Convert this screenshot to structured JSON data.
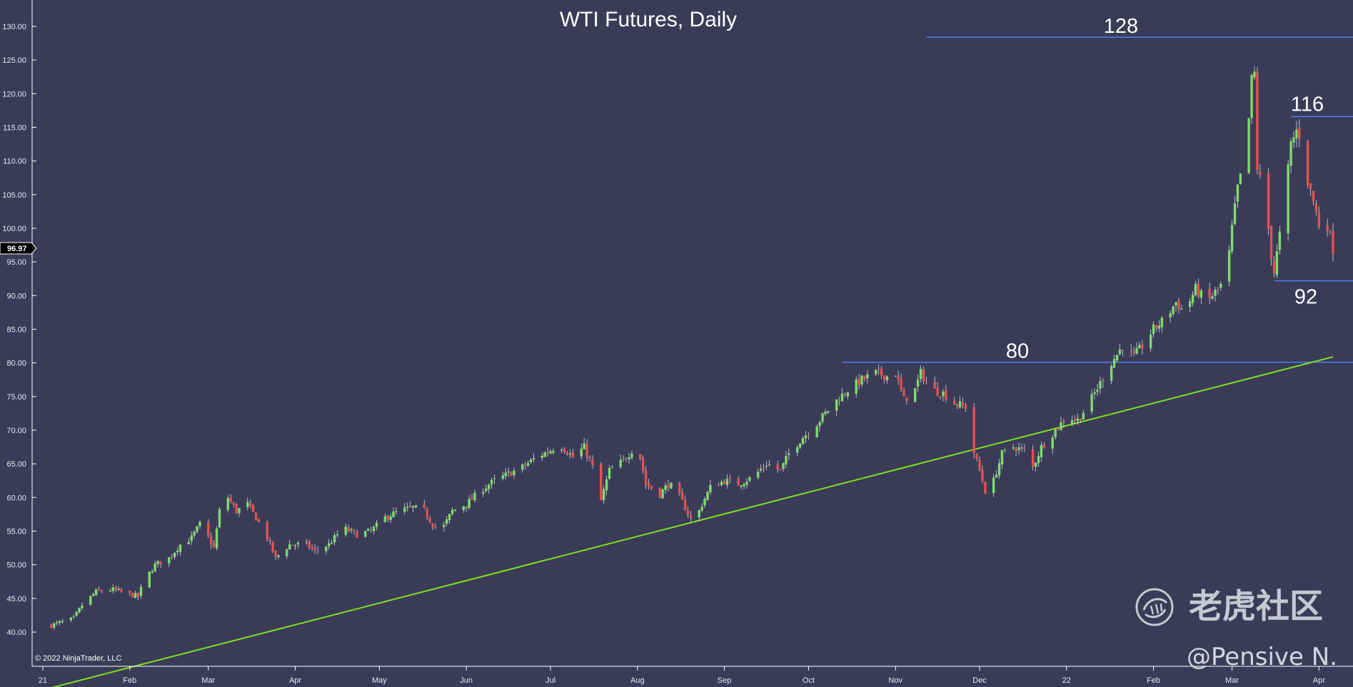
{
  "chart_data": {
    "type": "candlestick",
    "title": "WTI Futures, Daily",
    "ylim": [
      36.5,
      135
    ],
    "yticks": [
      40,
      45,
      50,
      55,
      60,
      65,
      70,
      75,
      80,
      85,
      90,
      95,
      100,
      105,
      110,
      115,
      120,
      125,
      130
    ],
    "ytick_labels": [
      "40.00",
      "45.00",
      "50.00",
      "55.00",
      "60.00",
      "65.00",
      "70.00",
      "75.00",
      "80.00",
      "85.00",
      "90.00",
      "95.00",
      "100.00",
      "105.00",
      "110.00",
      "115.00",
      "120.00",
      "125.00",
      "130.00"
    ],
    "x_range": [
      "2021-01-01",
      "2022-04-06"
    ],
    "xticks": [
      {
        "date": "2021-01-01",
        "label": "21"
      },
      {
        "date": "2021-02-01",
        "label": "Feb"
      },
      {
        "date": "2021-03-01",
        "label": "Mar"
      },
      {
        "date": "2021-04-01",
        "label": "Apr"
      },
      {
        "date": "2021-05-01",
        "label": "May"
      },
      {
        "date": "2021-06-01",
        "label": "Jun"
      },
      {
        "date": "2021-07-01",
        "label": "Jul"
      },
      {
        "date": "2021-08-01",
        "label": "Aug"
      },
      {
        "date": "2021-09-01",
        "label": "Sep"
      },
      {
        "date": "2021-10-01",
        "label": "Oct"
      },
      {
        "date": "2021-11-01",
        "label": "Nov"
      },
      {
        "date": "2021-12-01",
        "label": "Dec"
      },
      {
        "date": "2022-01-01",
        "label": "22"
      },
      {
        "date": "2022-02-01",
        "label": "Feb"
      },
      {
        "date": "2022-03-01",
        "label": "Mar"
      },
      {
        "date": "2022-04-01",
        "label": "Apr"
      }
    ],
    "close_path": [
      [
        "2021-01-04",
        41.0
      ],
      [
        "2021-01-08",
        41.5
      ],
      [
        "2021-01-12",
        42.0
      ],
      [
        "2021-01-15",
        44.0
      ],
      [
        "2021-01-20",
        46.0
      ],
      [
        "2021-01-26",
        46.3
      ],
      [
        "2021-02-01",
        45.6
      ],
      [
        "2021-02-04",
        45.3
      ],
      [
        "2021-02-06",
        47.5
      ],
      [
        "2021-02-10",
        50.0
      ],
      [
        "2021-02-15",
        51.0
      ],
      [
        "2021-02-19",
        53.0
      ],
      [
        "2021-02-23",
        54.0
      ],
      [
        "2021-02-26",
        56.0
      ],
      [
        "2021-03-01",
        54.0
      ],
      [
        "2021-03-03",
        52.5
      ],
      [
        "2021-03-05",
        58.0
      ],
      [
        "2021-03-08",
        60.0
      ],
      [
        "2021-03-11",
        58.0
      ],
      [
        "2021-03-15",
        59.0
      ],
      [
        "2021-03-18",
        57.0
      ],
      [
        "2021-03-22",
        54.0
      ],
      [
        "2021-03-25",
        51.0
      ],
      [
        "2021-03-30",
        53.0
      ],
      [
        "2021-04-05",
        53.0
      ],
      [
        "2021-04-08",
        52.0
      ],
      [
        "2021-04-13",
        53.0
      ],
      [
        "2021-04-18",
        55.5
      ],
      [
        "2021-04-23",
        54.5
      ],
      [
        "2021-04-28",
        55.0
      ],
      [
        "2021-05-03",
        57.0
      ],
      [
        "2021-05-08",
        58.0
      ],
      [
        "2021-05-13",
        58.5
      ],
      [
        "2021-05-17",
        58.0
      ],
      [
        "2021-05-20",
        56.0
      ],
      [
        "2021-05-23",
        55.0
      ],
      [
        "2021-05-27",
        58.0
      ],
      [
        "2021-06-01",
        59.0
      ],
      [
        "2021-06-06",
        61.0
      ],
      [
        "2021-06-11",
        62.5
      ],
      [
        "2021-06-16",
        63.5
      ],
      [
        "2021-06-21",
        64.5
      ],
      [
        "2021-06-26",
        66.0
      ],
      [
        "2021-07-01",
        67.0
      ],
      [
        "2021-07-04",
        68.0
      ],
      [
        "2021-07-09",
        66.0
      ],
      [
        "2021-07-13",
        67.5
      ],
      [
        "2021-07-16",
        64.5
      ],
      [
        "2021-07-19",
        59.5
      ],
      [
        "2021-07-22",
        64.0
      ],
      [
        "2021-07-27",
        65.5
      ],
      [
        "2021-07-30",
        67.0
      ],
      [
        "2021-08-02",
        66.0
      ],
      [
        "2021-08-04",
        62.0
      ],
      [
        "2021-08-09",
        60.5
      ],
      [
        "2021-08-12",
        62.0
      ],
      [
        "2021-08-15",
        61.0
      ],
      [
        "2021-08-18",
        58.5
      ],
      [
        "2021-08-21",
        56.0
      ],
      [
        "2021-08-24",
        59.0
      ],
      [
        "2021-08-27",
        61.5
      ],
      [
        "2021-09-01",
        62.5
      ],
      [
        "2021-09-06",
        62.0
      ],
      [
        "2021-09-11",
        63.0
      ],
      [
        "2021-09-16",
        65.0
      ],
      [
        "2021-09-21",
        64.0
      ],
      [
        "2021-09-24",
        66.5
      ],
      [
        "2021-09-29",
        69.0
      ],
      [
        "2021-10-02",
        70.0
      ],
      [
        "2021-10-06",
        72.0
      ],
      [
        "2021-10-10",
        74.0
      ],
      [
        "2021-10-15",
        76.0
      ],
      [
        "2021-10-20",
        77.5
      ],
      [
        "2021-10-25",
        78.5
      ],
      [
        "2021-10-29",
        78.0
      ],
      [
        "2021-11-01",
        78.5
      ],
      [
        "2021-11-04",
        74.5
      ],
      [
        "2021-11-08",
        76.0
      ],
      [
        "2021-11-10",
        78.5
      ],
      [
        "2021-11-14",
        76.0
      ],
      [
        "2021-11-18",
        75.5
      ],
      [
        "2021-11-22",
        74.0
      ],
      [
        "2021-11-26",
        73.5
      ],
      [
        "2021-11-28",
        68.0
      ],
      [
        "2021-12-01",
        64.0
      ],
      [
        "2021-12-03",
        61.0
      ],
      [
        "2021-12-06",
        62.5
      ],
      [
        "2021-12-09",
        66.5
      ],
      [
        "2021-12-13",
        67.5
      ],
      [
        "2021-12-17",
        67.0
      ],
      [
        "2021-12-20",
        64.5
      ],
      [
        "2021-12-23",
        67.5
      ],
      [
        "2021-12-28",
        70.0
      ],
      [
        "2022-01-01",
        72.0
      ],
      [
        "2022-01-05",
        71.5
      ],
      [
        "2022-01-09",
        74.0
      ],
      [
        "2022-01-13",
        77.0
      ],
      [
        "2022-01-17",
        80.0
      ],
      [
        "2022-01-21",
        82.5
      ],
      [
        "2022-01-25",
        81.0
      ],
      [
        "2022-01-28",
        82.5
      ],
      [
        "2022-02-01",
        85.0
      ],
      [
        "2022-02-05",
        86.5
      ],
      [
        "2022-02-09",
        89.0
      ],
      [
        "2022-02-12",
        87.5
      ],
      [
        "2022-02-16",
        91.0
      ],
      [
        "2022-02-20",
        89.0
      ],
      [
        "2022-02-24",
        91.0
      ],
      [
        "2022-02-27",
        92.5
      ],
      [
        "2022-03-01",
        100.0
      ],
      [
        "2022-03-03",
        106.0
      ],
      [
        "2022-03-06",
        110.5
      ],
      [
        "2022-03-08",
        122.0
      ],
      [
        "2022-03-09",
        123.0
      ],
      [
        "2022-03-10",
        109.0
      ],
      [
        "2022-03-13",
        104.0
      ],
      [
        "2022-03-15",
        96.0
      ],
      [
        "2022-03-16",
        93.5
      ],
      [
        "2022-03-18",
        99.0
      ],
      [
        "2022-03-20",
        105.0
      ],
      [
        "2022-03-22",
        112.5
      ],
      [
        "2022-03-24",
        114.5
      ],
      [
        "2022-03-26",
        113.0
      ],
      [
        "2022-03-28",
        107.0
      ],
      [
        "2022-03-30",
        104.0
      ],
      [
        "2022-04-01",
        100.5
      ],
      [
        "2022-04-03",
        102.0
      ],
      [
        "2022-04-04",
        100.5
      ],
      [
        "2022-04-06",
        96.97
      ]
    ],
    "current_price_label": "96.97",
    "horizontal_levels": [
      {
        "label": "128",
        "value": 128.4,
        "x_start": "2021-11-12",
        "color": "#4f7fe8"
      },
      {
        "label": "116",
        "value": 116.6,
        "x_start": "2022-03-22",
        "color": "#4f7fe8"
      },
      {
        "label": "80",
        "value": 80.1,
        "x_start": "2021-10-13",
        "color": "#4f7fe8"
      },
      {
        "label": "92",
        "value": 92.2,
        "x_start": "2022-03-16",
        "color": "#4f7fe8"
      }
    ],
    "trendline": {
      "color": "#7ee01e",
      "points": [
        [
          "2021-01-01",
          31.4
        ],
        [
          "2022-04-06",
          80.9
        ]
      ]
    },
    "colors": {
      "background": "#3a3c57",
      "up": "#7ddc6a",
      "down": "#e45050",
      "axis": "#ffffff"
    },
    "grid": false
  },
  "footer": {
    "copyright": "© 2022 NinjaTrader, LLC"
  },
  "watermark": {
    "brand": "老虎社区",
    "handle": "@Pensive N.",
    "icon": "tiger-logo-icon"
  }
}
